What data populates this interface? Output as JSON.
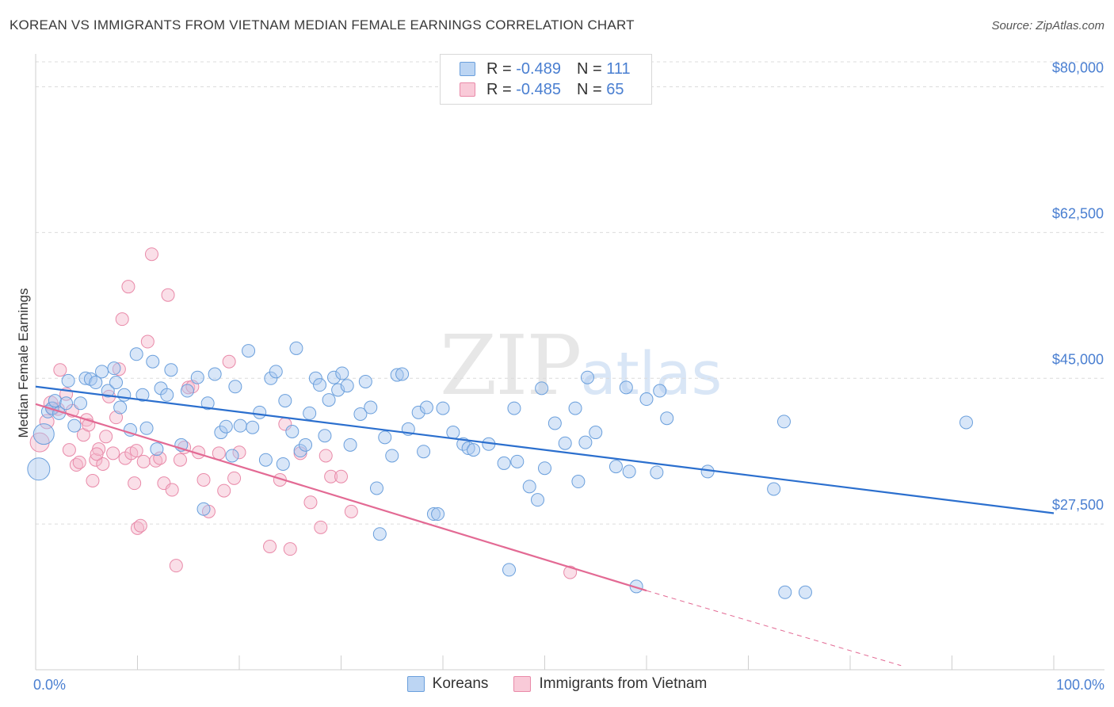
{
  "title": "KOREAN VS IMMIGRANTS FROM VIETNAM MEDIAN FEMALE EARNINGS CORRELATION CHART",
  "source": "Source: ZipAtlas.com",
  "watermark": {
    "zip": "ZIP",
    "atlas": "atlas"
  },
  "legend_top": [
    {
      "r_label": "R =",
      "r_value": "-0.489",
      "n_label": "N =",
      "n_value": "111"
    },
    {
      "r_label": "R =",
      "r_value": "-0.485",
      "n_label": "N =",
      "n_value": "65"
    }
  ],
  "colors": {
    "blue_fill": "#a9c8ef",
    "blue_stroke": "#6a9fdc",
    "blue_line": "#2b6fce",
    "pink_fill": "#f5b8cb",
    "pink_stroke": "#e98aa9",
    "pink_line": "#e36a94",
    "tick_label": "#4a7fd1",
    "grid": "#dcdcdc"
  },
  "chart_data": {
    "type": "scatter",
    "title": "KOREAN VS IMMIGRANTS FROM VIETNAM MEDIAN FEMALE EARNINGS CORRELATION CHART",
    "xlabel": "",
    "ylabel": "Median Female Earnings",
    "xlim": [
      0,
      100
    ],
    "ylim": [
      10000,
      83000
    ],
    "x_tick_labels": [
      "0.0%",
      "100.0%"
    ],
    "y_ticks": [
      27500,
      45000,
      62500,
      80000
    ],
    "y_tick_labels": [
      "$27,500",
      "$45,000",
      "$62,500",
      "$80,000"
    ],
    "series": [
      {
        "name": "Koreans",
        "color": "#6a9fdc",
        "r": -0.489,
        "n": 111,
        "trend": {
          "x": [
            0,
            100
          ],
          "y": [
            44000,
            28800
          ]
        },
        "points": [
          [
            0.3,
            34100,
            14
          ],
          [
            0.8,
            38300,
            13
          ],
          [
            1.2,
            41000,
            8
          ],
          [
            1.6,
            41400,
            8
          ],
          [
            1.9,
            42300,
            8
          ],
          [
            2.3,
            40800,
            8
          ],
          [
            3.0,
            42000,
            8
          ],
          [
            3.2,
            44700,
            8
          ],
          [
            3.8,
            39300,
            8
          ],
          [
            4.4,
            42000,
            8
          ],
          [
            4.9,
            45000,
            8
          ],
          [
            5.4,
            44900,
            8
          ],
          [
            5.9,
            44500,
            8
          ],
          [
            6.5,
            45800,
            8
          ],
          [
            7.1,
            43500,
            8
          ],
          [
            7.7,
            46200,
            8
          ],
          [
            7.9,
            44500,
            8
          ],
          [
            8.3,
            41500,
            8
          ],
          [
            8.7,
            43000,
            8
          ],
          [
            9.3,
            38800,
            8
          ],
          [
            9.9,
            47900,
            8
          ],
          [
            10.5,
            43000,
            8
          ],
          [
            10.9,
            39000,
            8
          ],
          [
            11.5,
            47000,
            8
          ],
          [
            11.9,
            36500,
            8
          ],
          [
            12.3,
            43800,
            8
          ],
          [
            12.9,
            43000,
            8
          ],
          [
            13.3,
            46000,
            8
          ],
          [
            14.3,
            37000,
            8
          ],
          [
            14.9,
            43500,
            8
          ],
          [
            15.9,
            45100,
            8
          ],
          [
            16.5,
            29300,
            8
          ],
          [
            16.9,
            42000,
            8
          ],
          [
            17.6,
            45500,
            8
          ],
          [
            18.2,
            38500,
            8
          ],
          [
            18.7,
            39200,
            8
          ],
          [
            19.3,
            35700,
            8
          ],
          [
            19.6,
            44000,
            8
          ],
          [
            20.1,
            39300,
            8
          ],
          [
            20.9,
            48300,
            8
          ],
          [
            21.3,
            39100,
            8
          ],
          [
            22.0,
            40900,
            8
          ],
          [
            22.6,
            35200,
            8
          ],
          [
            23.1,
            45000,
            8
          ],
          [
            23.6,
            45800,
            8
          ],
          [
            24.3,
            34700,
            8
          ],
          [
            24.5,
            42300,
            8
          ],
          [
            25.2,
            38600,
            8
          ],
          [
            25.6,
            48600,
            8
          ],
          [
            26.0,
            36300,
            8
          ],
          [
            26.5,
            37000,
            8
          ],
          [
            26.9,
            40800,
            8
          ],
          [
            27.5,
            45000,
            8
          ],
          [
            27.9,
            44200,
            8
          ],
          [
            28.4,
            38100,
            8
          ],
          [
            28.8,
            42400,
            8
          ],
          [
            29.3,
            45100,
            8
          ],
          [
            29.7,
            43600,
            8
          ],
          [
            30.1,
            45600,
            8
          ],
          [
            30.6,
            44100,
            8
          ],
          [
            30.9,
            37000,
            8
          ],
          [
            31.9,
            40700,
            8
          ],
          [
            32.4,
            44600,
            8
          ],
          [
            32.9,
            41500,
            8
          ],
          [
            33.5,
            31800,
            8
          ],
          [
            33.8,
            26300,
            8
          ],
          [
            34.3,
            37900,
            8
          ],
          [
            35.0,
            35700,
            8
          ],
          [
            35.5,
            45400,
            8
          ],
          [
            36.0,
            45500,
            8
          ],
          [
            36.6,
            38900,
            8
          ],
          [
            37.6,
            40900,
            8
          ],
          [
            38.1,
            36200,
            8
          ],
          [
            38.4,
            41500,
            8
          ],
          [
            39.1,
            28700,
            8
          ],
          [
            39.5,
            28700,
            8
          ],
          [
            40.0,
            41400,
            8
          ],
          [
            41.0,
            38500,
            8
          ],
          [
            42.0,
            37100,
            8
          ],
          [
            42.5,
            36600,
            8
          ],
          [
            43.0,
            36400,
            8
          ],
          [
            44.5,
            37100,
            8
          ],
          [
            46.0,
            34800,
            8
          ],
          [
            46.5,
            22000,
            8
          ],
          [
            47.0,
            41400,
            8
          ],
          [
            47.3,
            35000,
            8
          ],
          [
            48.5,
            32000,
            8
          ],
          [
            49.3,
            30400,
            8
          ],
          [
            49.7,
            43800,
            8
          ],
          [
            50.0,
            34200,
            8
          ],
          [
            51.0,
            39600,
            8
          ],
          [
            52.0,
            37200,
            8
          ],
          [
            53.0,
            41400,
            8
          ],
          [
            53.3,
            32600,
            8
          ],
          [
            54.0,
            37300,
            8
          ],
          [
            54.2,
            45100,
            8
          ],
          [
            55.0,
            38500,
            8
          ],
          [
            57.0,
            34400,
            8
          ],
          [
            58.0,
            43900,
            8
          ],
          [
            58.3,
            33800,
            8
          ],
          [
            59.0,
            20000,
            8
          ],
          [
            60.0,
            42500,
            8
          ],
          [
            61.0,
            33700,
            8
          ],
          [
            61.3,
            43500,
            8
          ],
          [
            62.0,
            40200,
            8
          ],
          [
            66.0,
            33800,
            8
          ],
          [
            72.5,
            31700,
            8
          ],
          [
            73.5,
            39800,
            8
          ],
          [
            73.6,
            19300,
            8
          ],
          [
            75.6,
            19300,
            8
          ],
          [
            91.4,
            39700,
            8
          ]
        ]
      },
      {
        "name": "Immigrants from Vietnam",
        "color": "#e98aa9",
        "r": -0.485,
        "n": 65,
        "trend": {
          "x": [
            0,
            60
          ],
          "y": [
            41900,
            19500
          ]
        },
        "trend_dashed": {
          "x": [
            60,
            85
          ],
          "y": [
            19500,
            10500
          ]
        },
        "points": [
          [
            0.4,
            37300,
            12
          ],
          [
            1.1,
            39800,
            9
          ],
          [
            1.5,
            42000,
            9
          ],
          [
            2.2,
            41300,
            8
          ],
          [
            2.4,
            46000,
            8
          ],
          [
            3.0,
            43100,
            8
          ],
          [
            3.6,
            41100,
            8
          ],
          [
            4.0,
            34600,
            8
          ],
          [
            4.3,
            34900,
            8
          ],
          [
            4.7,
            38200,
            8
          ],
          [
            5.0,
            40000,
            8
          ],
          [
            5.2,
            39400,
            8
          ],
          [
            5.6,
            32700,
            8
          ],
          [
            5.9,
            35200,
            8
          ],
          [
            6.2,
            36500,
            8
          ],
          [
            6.6,
            34700,
            8
          ],
          [
            6.9,
            38000,
            8
          ],
          [
            7.2,
            42800,
            8
          ],
          [
            7.6,
            36000,
            8
          ],
          [
            7.9,
            40300,
            8
          ],
          [
            8.2,
            46100,
            8
          ],
          [
            8.5,
            52100,
            8
          ],
          [
            8.8,
            35400,
            8
          ],
          [
            9.1,
            56000,
            8
          ],
          [
            9.4,
            36000,
            8
          ],
          [
            9.7,
            32400,
            8
          ],
          [
            10.0,
            27000,
            8
          ],
          [
            10.3,
            27300,
            8
          ],
          [
            10.6,
            35000,
            8
          ],
          [
            11.0,
            49400,
            8
          ],
          [
            11.4,
            59900,
            8
          ],
          [
            11.8,
            35100,
            8
          ],
          [
            12.2,
            35400,
            8
          ],
          [
            12.6,
            32400,
            8
          ],
          [
            13.0,
            55000,
            8
          ],
          [
            13.4,
            31600,
            8
          ],
          [
            13.8,
            22500,
            8
          ],
          [
            14.2,
            35200,
            8
          ],
          [
            14.6,
            36700,
            8
          ],
          [
            15.0,
            43900,
            8
          ],
          [
            15.4,
            44000,
            8
          ],
          [
            16.0,
            36100,
            8
          ],
          [
            16.5,
            32800,
            8
          ],
          [
            17.0,
            29000,
            8
          ],
          [
            18.0,
            36000,
            8
          ],
          [
            18.5,
            31500,
            8
          ],
          [
            19.0,
            47000,
            8
          ],
          [
            19.5,
            33000,
            8
          ],
          [
            20.0,
            36100,
            8
          ],
          [
            23.0,
            24800,
            8
          ],
          [
            24.0,
            32800,
            8
          ],
          [
            24.5,
            39500,
            8
          ],
          [
            25.0,
            24500,
            8
          ],
          [
            26.0,
            36000,
            8
          ],
          [
            27.0,
            30100,
            8
          ],
          [
            28.0,
            27100,
            8
          ],
          [
            28.5,
            35700,
            8
          ],
          [
            29.0,
            33200,
            8
          ],
          [
            30.0,
            33200,
            8
          ],
          [
            31.0,
            29000,
            8
          ],
          [
            52.5,
            21700,
            8
          ],
          [
            1.7,
            41400,
            8
          ],
          [
            3.3,
            36400,
            8
          ],
          [
            6.0,
            35900,
            8
          ],
          [
            9.9,
            36300,
            8
          ]
        ]
      }
    ]
  },
  "legend_bottom": [
    "Koreans",
    "Immigrants from Vietnam"
  ]
}
